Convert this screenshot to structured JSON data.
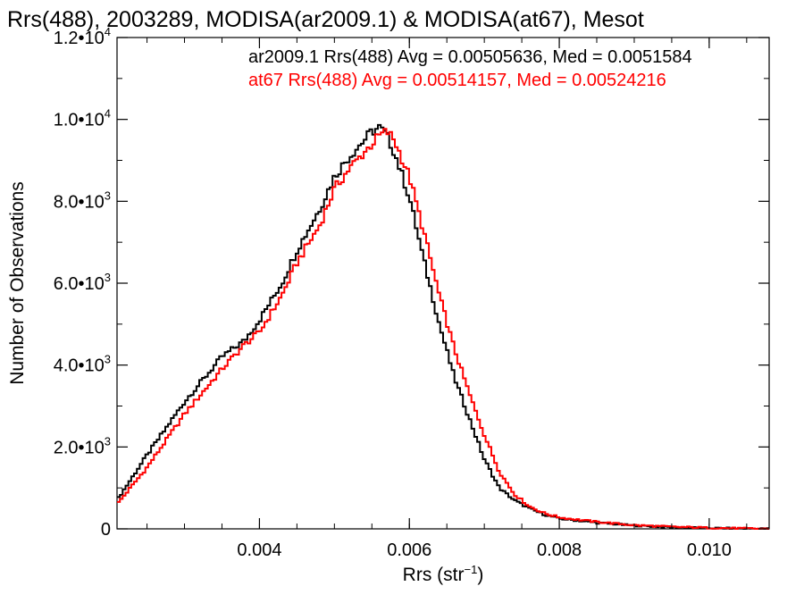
{
  "chart_data": {
    "type": "line",
    "title": "Rrs(488), 2003289, MODISA(ar2009.1) & MODISA(at67), Mesot",
    "xlabel": "Rrs (str",
    "xlabel_sup": "−1",
    "xlabel_close": ")",
    "ylabel": "Number of Observations",
    "xlim": [
      0.0021,
      0.0108
    ],
    "ylim": [
      0,
      12000
    ],
    "xticks": [
      {
        "value": 0.004,
        "label": "0.004"
      },
      {
        "value": 0.006,
        "label": "0.006"
      },
      {
        "value": 0.008,
        "label": "0.008"
      },
      {
        "value": 0.01,
        "label": "0.010"
      }
    ],
    "yticks": [
      {
        "value": 0,
        "label": "0",
        "exp": ""
      },
      {
        "value": 2000,
        "label": "2.0•10",
        "exp": "3"
      },
      {
        "value": 4000,
        "label": "4.0•10",
        "exp": "3"
      },
      {
        "value": 6000,
        "label": "6.0•10",
        "exp": "3"
      },
      {
        "value": 8000,
        "label": "8.0•10",
        "exp": "3"
      },
      {
        "value": 10000,
        "label": "1.0•10",
        "exp": "4"
      },
      {
        "value": 12000,
        "label": "1.2•10",
        "exp": "4"
      }
    ],
    "series": [
      {
        "name": "ar2009.1",
        "annotation": "ar2009.1 Rrs(488) Avg = 0.00505636, Med = 0.0051584",
        "color": "#000000",
        "x": [
          0.0021,
          0.0025,
          0.003,
          0.0035,
          0.0038,
          0.004,
          0.0043,
          0.0045,
          0.0048,
          0.005,
          0.0052,
          0.0054,
          0.0055,
          0.0056,
          0.0057,
          0.0058,
          0.006,
          0.0062,
          0.0064,
          0.0066,
          0.0068,
          0.007,
          0.0072,
          0.0074,
          0.0076,
          0.0078,
          0.008,
          0.0085,
          0.009,
          0.0095,
          0.01,
          0.0108
        ],
        "y": [
          700,
          1800,
          3100,
          4200,
          4600,
          5100,
          6000,
          6800,
          7800,
          8600,
          9100,
          9500,
          9700,
          9800,
          9600,
          9200,
          8100,
          6500,
          5000,
          3700,
          2700,
          1700,
          1000,
          700,
          500,
          350,
          250,
          150,
          80,
          40,
          20,
          0
        ]
      },
      {
        "name": "at67",
        "annotation": "at67 Rrs(488) Avg = 0.00514157, Med = 0.00524216",
        "color": "#ff0000",
        "x": [
          0.0021,
          0.0025,
          0.003,
          0.0035,
          0.0038,
          0.004,
          0.0043,
          0.0045,
          0.0048,
          0.005,
          0.0052,
          0.0054,
          0.0055,
          0.0056,
          0.0057,
          0.0058,
          0.006,
          0.0062,
          0.0064,
          0.0066,
          0.0068,
          0.007,
          0.0072,
          0.0074,
          0.0076,
          0.0078,
          0.008,
          0.0085,
          0.009,
          0.0095,
          0.01,
          0.0108
        ],
        "y": [
          600,
          1500,
          2800,
          3900,
          4500,
          4800,
          5700,
          6500,
          7400,
          8300,
          8800,
          9200,
          9400,
          9600,
          9700,
          9500,
          8600,
          7200,
          5700,
          4400,
          3300,
          2300,
          1400,
          850,
          550,
          380,
          280,
          170,
          90,
          50,
          25,
          0
        ]
      }
    ]
  }
}
